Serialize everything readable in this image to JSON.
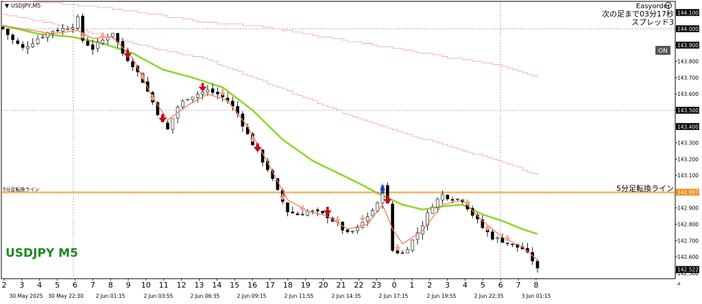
{
  "window": {
    "title": "USDJPY,M5",
    "menu_icon": "triangle-down-icon"
  },
  "ea_panel": {
    "name": "Easyorder",
    "name_icon": "copyright-circle-icon",
    "countdown": "次の足まで03分17秒",
    "spread": "スプレッド3",
    "on_button": "ON"
  },
  "watermark": "USDJPY M5",
  "colors": {
    "bull_candle": "#ffffff",
    "bear_candle": "#000000",
    "fast_ma": "#f07a5a",
    "mid_ma": "#8fd62a",
    "slow_ma": "#f0a8b8",
    "level_line": "#f08c1e",
    "down_arrow_big": "#d0021b",
    "down_arrow_small": "#f4a08a",
    "up_arrow": "#1a3ad8",
    "watermark": "#1f8a1f",
    "axis_highlight_bg": "#000000"
  },
  "chart_data": {
    "type": "candlestick",
    "symbol": "USDJPY",
    "timeframe": "M5",
    "y_range": [
      142.47,
      144.16
    ],
    "price_axis_labels": [
      "144.100",
      "144.000",
      "143.900",
      "143.800",
      "143.700",
      "143.600",
      "143.500",
      "143.400",
      "143.300",
      "143.200",
      "143.100",
      "142.900",
      "142.800",
      "142.700",
      "142.600",
      "142.500"
    ],
    "price_axis_highlights": [
      {
        "value": "144.100",
        "price": 144.1
      },
      {
        "value": "144.000",
        "price": 144.0
      },
      {
        "value": "143.900",
        "price": 143.9
      },
      {
        "value": "143.500",
        "price": 143.5
      },
      {
        "value": "143.400",
        "price": 143.4
      },
      {
        "value": "142.997",
        "price": 142.997
      },
      {
        "value": "142.522",
        "price": 142.522
      }
    ],
    "hour_labels": [
      "2",
      "3",
      "4",
      "5",
      "6",
      "7",
      "8",
      "9",
      "10",
      "11",
      "12",
      "13",
      "14",
      "15",
      "16",
      "17",
      "18",
      "19",
      "20",
      "21",
      "22",
      "23",
      "0",
      "1",
      "2",
      "3",
      "4",
      "5",
      "6",
      "7",
      "8"
    ],
    "date_labels": [
      "30 May 2025",
      "30 May 22:30",
      "2 Jun 01:15",
      "2 Jun 03:55",
      "2 Jun 06:35",
      "2 Jun 09:15",
      "2 Jun 11:55",
      "2 Jun 14:35",
      "2 Jun 17:15",
      "2 Jun 19:55",
      "2 Jun 22:35",
      "3 Jun 01:15"
    ],
    "horizontal_level": {
      "label": "5分足転換ライン",
      "value": 142.997
    },
    "dotted_levels": [
      144.0,
      143.5
    ],
    "close_anchors": [
      [
        0,
        144.0
      ],
      [
        2,
        143.93
      ],
      [
        4,
        143.88
      ],
      [
        6,
        143.92
      ],
      [
        8,
        143.96
      ],
      [
        10,
        143.99
      ],
      [
        12,
        144.0
      ],
      [
        14,
        144.02
      ],
      [
        15,
        144.06
      ],
      [
        16,
        143.93
      ],
      [
        18,
        143.88
      ],
      [
        20,
        143.93
      ],
      [
        22,
        143.98
      ],
      [
        24,
        143.85
      ],
      [
        26,
        143.78
      ],
      [
        28,
        143.68
      ],
      [
        30,
        143.55
      ],
      [
        32,
        143.42
      ],
      [
        33,
        143.38
      ],
      [
        35,
        143.52
      ],
      [
        37,
        143.58
      ],
      [
        39,
        143.6
      ],
      [
        41,
        143.62
      ],
      [
        43,
        143.6
      ],
      [
        45,
        143.56
      ],
      [
        47,
        143.48
      ],
      [
        49,
        143.35
      ],
      [
        51,
        143.24
      ],
      [
        53,
        143.14
      ],
      [
        55,
        143.0
      ],
      [
        57,
        142.88
      ],
      [
        59,
        142.86
      ],
      [
        61,
        142.88
      ],
      [
        63,
        142.87
      ],
      [
        65,
        142.85
      ],
      [
        67,
        142.8
      ],
      [
        69,
        142.74
      ],
      [
        71,
        142.77
      ],
      [
        73,
        142.85
      ],
      [
        75,
        142.92
      ],
      [
        76,
        143.05
      ],
      [
        77,
        142.92
      ],
      [
        78,
        142.64
      ],
      [
        80,
        142.62
      ],
      [
        82,
        142.7
      ],
      [
        84,
        142.8
      ],
      [
        86,
        142.92
      ],
      [
        88,
        142.98
      ],
      [
        90,
        142.96
      ],
      [
        92,
        142.95
      ],
      [
        94,
        142.86
      ],
      [
        96,
        142.78
      ],
      [
        98,
        142.72
      ],
      [
        100,
        142.7
      ],
      [
        102,
        142.67
      ],
      [
        104,
        142.65
      ],
      [
        106,
        142.58
      ],
      [
        107,
        142.52
      ]
    ],
    "fast_ma": [
      [
        0,
        144.02
      ],
      [
        10,
        143.97
      ],
      [
        15,
        143.99
      ],
      [
        18,
        143.94
      ],
      [
        22,
        143.95
      ],
      [
        26,
        143.82
      ],
      [
        30,
        143.58
      ],
      [
        33,
        143.44
      ],
      [
        37,
        143.53
      ],
      [
        41,
        143.6
      ],
      [
        45,
        143.56
      ],
      [
        49,
        143.4
      ],
      [
        53,
        143.18
      ],
      [
        57,
        142.95
      ],
      [
        61,
        142.88
      ],
      [
        65,
        142.85
      ],
      [
        69,
        142.77
      ],
      [
        73,
        142.8
      ],
      [
        76,
        142.92
      ],
      [
        78,
        142.77
      ],
      [
        80,
        142.68
      ],
      [
        84,
        142.76
      ],
      [
        88,
        142.92
      ],
      [
        92,
        142.95
      ],
      [
        96,
        142.82
      ],
      [
        100,
        142.72
      ],
      [
        104,
        142.66
      ],
      [
        107,
        142.58
      ]
    ],
    "mid_ma": [
      [
        0,
        144.02
      ],
      [
        7,
        143.97
      ],
      [
        14,
        143.95
      ],
      [
        20,
        143.91
      ],
      [
        26,
        143.85
      ],
      [
        32,
        143.75
      ],
      [
        38,
        143.7
      ],
      [
        44,
        143.64
      ],
      [
        50,
        143.5
      ],
      [
        56,
        143.32
      ],
      [
        62,
        143.19
      ],
      [
        68,
        143.1
      ],
      [
        72,
        143.04
      ],
      [
        75,
        142.99
      ],
      [
        80,
        142.92
      ],
      [
        84,
        142.89
      ],
      [
        88,
        142.91
      ],
      [
        92,
        142.92
      ],
      [
        96,
        142.86
      ],
      [
        100,
        142.82
      ],
      [
        104,
        142.77
      ],
      [
        107,
        142.74
      ]
    ],
    "slow_ma": [
      [
        0,
        144.09
      ],
      [
        10,
        144.03
      ],
      [
        20,
        143.96
      ],
      [
        30,
        143.88
      ],
      [
        40,
        143.82
      ],
      [
        50,
        143.7
      ],
      [
        60,
        143.58
      ],
      [
        70,
        143.46
      ],
      [
        80,
        143.36
      ],
      [
        90,
        143.27
      ],
      [
        100,
        143.18
      ],
      [
        107,
        143.1
      ]
    ],
    "slow_ma_upper": [
      [
        0,
        144.17
      ],
      [
        10,
        144.16
      ],
      [
        20,
        144.13
      ],
      [
        30,
        144.09
      ],
      [
        40,
        144.04
      ],
      [
        50,
        144.02
      ],
      [
        60,
        143.97
      ],
      [
        70,
        143.92
      ],
      [
        80,
        143.87
      ],
      [
        90,
        143.82
      ],
      [
        100,
        143.77
      ],
      [
        107,
        143.7
      ]
    ],
    "arrows": [
      {
        "i": 16,
        "dir": "down",
        "kind": "small"
      },
      {
        "i": 20,
        "dir": "down",
        "kind": "small"
      },
      {
        "i": 25,
        "dir": "down",
        "kind": "big"
      },
      {
        "i": 28,
        "dir": "down",
        "kind": "small"
      },
      {
        "i": 30,
        "dir": "down",
        "kind": "small"
      },
      {
        "i": 32,
        "dir": "down",
        "kind": "big"
      },
      {
        "i": 40,
        "dir": "down",
        "kind": "big"
      },
      {
        "i": 44,
        "dir": "down",
        "kind": "small"
      },
      {
        "i": 50,
        "dir": "down",
        "kind": "small"
      },
      {
        "i": 51,
        "dir": "down",
        "kind": "big"
      },
      {
        "i": 56,
        "dir": "down",
        "kind": "small"
      },
      {
        "i": 60,
        "dir": "down",
        "kind": "small"
      },
      {
        "i": 65,
        "dir": "down",
        "kind": "big"
      },
      {
        "i": 67,
        "dir": "down",
        "kind": "small"
      },
      {
        "i": 72,
        "dir": "down",
        "kind": "small"
      },
      {
        "i": 76,
        "dir": "up",
        "kind": "up"
      },
      {
        "i": 77,
        "dir": "down",
        "kind": "big"
      },
      {
        "i": 79,
        "dir": "down",
        "kind": "small"
      },
      {
        "i": 93,
        "dir": "down",
        "kind": "small"
      },
      {
        "i": 97,
        "dir": "down",
        "kind": "small"
      },
      {
        "i": 101,
        "dir": "down",
        "kind": "small"
      }
    ]
  }
}
